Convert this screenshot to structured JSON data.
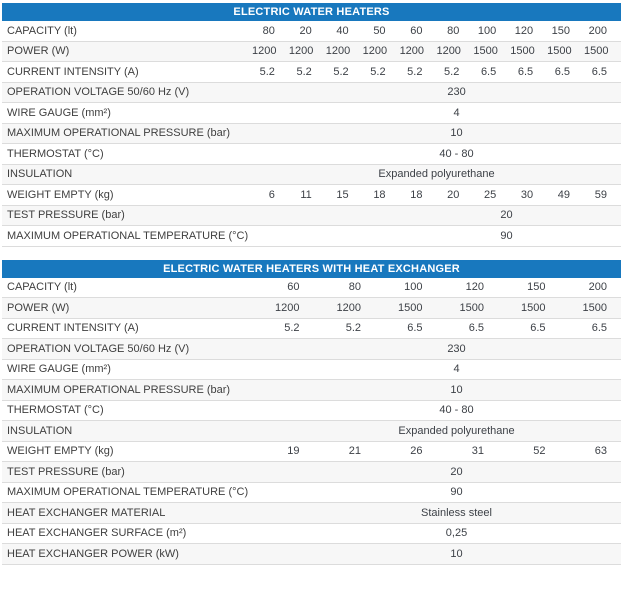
{
  "accent_color": "#1878be",
  "table1": {
    "title": "ELECTRIC WATER HEATERS",
    "rows": [
      {
        "label": "CAPACITY (lt)",
        "values": [
          "80",
          "20",
          "40",
          "50",
          "60",
          "80",
          "100",
          "120",
          "150",
          "200"
        ]
      },
      {
        "label": "POWER (W)",
        "values": [
          "1200",
          "1200",
          "1200",
          "1200",
          "1200",
          "1200",
          "1500",
          "1500",
          "1500",
          "1500"
        ]
      },
      {
        "label": "CURRENT INTENSITY (A)",
        "values": [
          "5.2",
          "5.2",
          "5.2",
          "5.2",
          "5.2",
          "5.2",
          "6.5",
          "6.5",
          "6.5",
          "6.5"
        ]
      },
      {
        "label": "OPERATION VOLTAGE 50/60 Hz (V)",
        "value": "230"
      },
      {
        "label": "WIRE GAUGE (mm²)",
        "value": "4"
      },
      {
        "label": "MAXIMUM OPERATIONAL PRESSURE (bar)",
        "value": "10"
      },
      {
        "label": "THERMOSTAT (°C)",
        "value": "40 - 80"
      },
      {
        "label": "INSULATION",
        "value": "Expanded polyurethane",
        "indent": "none"
      },
      {
        "label": "WEIGHT EMPTY (kg)",
        "values": [
          "6",
          "11",
          "15",
          "18",
          "18",
          "20",
          "25",
          "30",
          "49",
          "59"
        ]
      },
      {
        "label": "TEST PRESSURE (bar)",
        "value": "20",
        "indent": "right"
      },
      {
        "label": "MAXIMUM OPERATIONAL TEMPERATURE (°C)",
        "value": "90",
        "indent": "right"
      }
    ]
  },
  "table2": {
    "title": "ELECTRIC WATER HEATERS WITH HEAT EXCHANGER",
    "rows": [
      {
        "label": "CAPACITY (lt)",
        "values": [
          "60",
          "80",
          "100",
          "120",
          "150",
          "200"
        ]
      },
      {
        "label": "POWER (W)",
        "values": [
          "1200",
          "1200",
          "1500",
          "1500",
          "1500",
          "1500"
        ]
      },
      {
        "label": "CURRENT INTENSITY (A)",
        "values": [
          "5.2",
          "5.2",
          "6.5",
          "6.5",
          "6.5",
          "6.5"
        ]
      },
      {
        "label": "OPERATION VOLTAGE 50/60 Hz (V)",
        "value": "230"
      },
      {
        "label": "WIRE GAUGE (mm²)",
        "value": "4"
      },
      {
        "label": "MAXIMUM OPERATIONAL PRESSURE (bar)",
        "value": "10"
      },
      {
        "label": "THERMOSTAT (°C)",
        "value": "40 - 80"
      },
      {
        "label": "INSULATION",
        "value": "Expanded polyurethane"
      },
      {
        "label": "WEIGHT EMPTY (kg)",
        "values": [
          "19",
          "21",
          "26",
          "31",
          "52",
          "63"
        ]
      },
      {
        "label": "TEST PRESSURE (bar)",
        "value": "20"
      },
      {
        "label": "MAXIMUM OPERATIONAL TEMPERATURE (°C)",
        "value": "90"
      },
      {
        "label": "HEAT EXCHANGER MATERIAL",
        "value": "Stainless steel"
      },
      {
        "label": "HEAT EXCHANGER SURFACE (m²)",
        "value": "0,25"
      },
      {
        "label": "HEAT EXCHANGER POWER (kW)",
        "value": "10"
      }
    ]
  }
}
